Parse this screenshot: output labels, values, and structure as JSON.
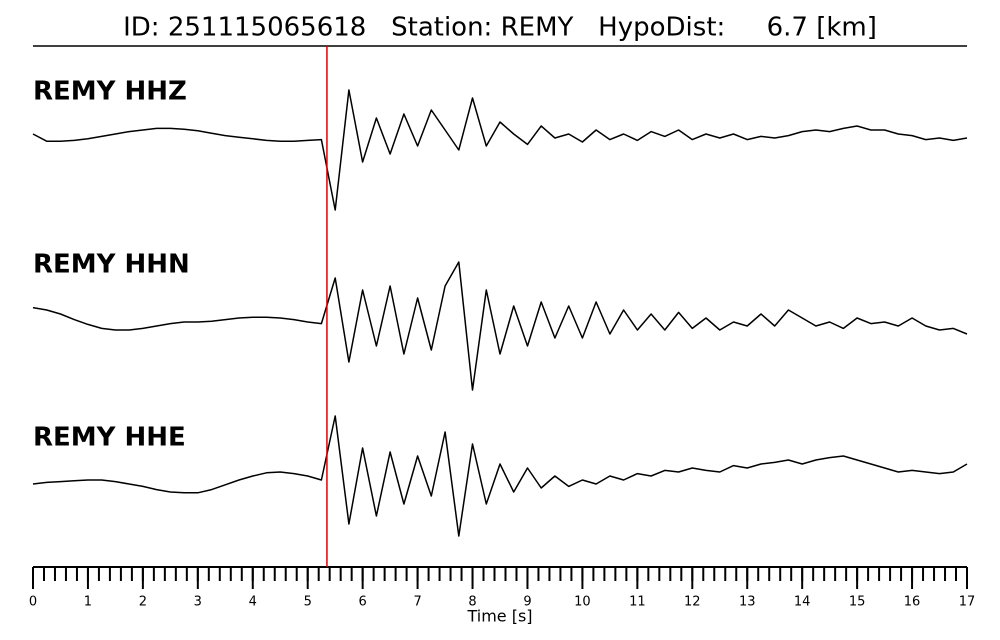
{
  "chart_data": {
    "type": "line",
    "title": "ID: 251115065618   Station: REMY   HypoDist:     6.7 [km]",
    "xlabel": "Time [s]",
    "xlim": [
      0,
      17
    ],
    "xticks": [
      0,
      1,
      2,
      3,
      4,
      5,
      6,
      7,
      8,
      9,
      10,
      11,
      12,
      13,
      14,
      15,
      16,
      17
    ],
    "minor_tick_step": 0.2,
    "vline": {
      "x": 5.35,
      "color": "#e00000"
    },
    "label_color": "#4c9a0e",
    "x": [
      0,
      0.25,
      0.5,
      0.75,
      1,
      1.25,
      1.5,
      1.75,
      2,
      2.25,
      2.5,
      2.75,
      3,
      3.25,
      3.5,
      3.75,
      4,
      4.25,
      4.5,
      4.75,
      5,
      5.25,
      5.5,
      5.75,
      6,
      6.25,
      6.5,
      6.75,
      7,
      7.25,
      7.5,
      7.75,
      8,
      8.25,
      8.5,
      8.75,
      9,
      9.25,
      9.5,
      9.75,
      10,
      10.25,
      10.5,
      10.75,
      11,
      11.25,
      11.5,
      11.75,
      12,
      12.25,
      12.5,
      12.75,
      13,
      13.25,
      13.5,
      13.75,
      14,
      14.25,
      14.5,
      14.75,
      15,
      15.25,
      15.5,
      15.75,
      16,
      16.25,
      16.5,
      16.75,
      17
    ],
    "series": [
      {
        "name": "REMY HHZ",
        "color": "#000000",
        "values": [
          0.05,
          -0.04,
          -0.04,
          -0.03,
          -0.01,
          0.02,
          0.05,
          0.08,
          0.1,
          0.12,
          0.12,
          0.11,
          0.09,
          0.06,
          0.03,
          0.01,
          -0.01,
          -0.03,
          -0.04,
          -0.04,
          -0.03,
          -0.02,
          -0.9,
          0.6,
          -0.3,
          0.25,
          -0.2,
          0.3,
          -0.1,
          0.35,
          0.1,
          -0.15,
          0.5,
          -0.1,
          0.2,
          0.05,
          -0.08,
          0.15,
          0.0,
          0.05,
          -0.05,
          0.1,
          -0.02,
          0.05,
          -0.03,
          0.08,
          0.02,
          0.1,
          -0.02,
          0.05,
          0.0,
          0.05,
          -0.02,
          0.02,
          0.0,
          0.03,
          0.08,
          0.1,
          0.08,
          0.12,
          0.15,
          0.1,
          0.1,
          0.05,
          0.03,
          -0.02,
          0.0,
          -0.03,
          0.0
        ]
      },
      {
        "name": "REMY HHN",
        "color": "#000000",
        "values": [
          0.18,
          0.15,
          0.1,
          0.03,
          -0.03,
          -0.08,
          -0.1,
          -0.1,
          -0.08,
          -0.05,
          -0.02,
          0.0,
          0.0,
          0.01,
          0.03,
          0.05,
          0.06,
          0.06,
          0.05,
          0.03,
          0.0,
          -0.02,
          0.55,
          -0.5,
          0.4,
          -0.3,
          0.45,
          -0.4,
          0.3,
          -0.35,
          0.45,
          0.75,
          -0.85,
          0.4,
          -0.4,
          0.2,
          -0.3,
          0.25,
          -0.2,
          0.2,
          -0.2,
          0.25,
          -0.15,
          0.15,
          -0.1,
          0.1,
          -0.1,
          0.12,
          -0.08,
          0.05,
          -0.1,
          0.0,
          -0.05,
          0.1,
          -0.05,
          0.15,
          0.05,
          -0.05,
          0.0,
          -0.08,
          0.05,
          -0.02,
          0.0,
          -0.05,
          0.05,
          -0.05,
          -0.1,
          -0.08,
          -0.15
        ]
      },
      {
        "name": "REMY HHE",
        "color": "#000000",
        "values": [
          -0.05,
          -0.03,
          -0.02,
          -0.01,
          0.0,
          0.0,
          -0.02,
          -0.05,
          -0.08,
          -0.12,
          -0.15,
          -0.16,
          -0.16,
          -0.12,
          -0.06,
          0.0,
          0.05,
          0.09,
          0.1,
          0.08,
          0.05,
          0.0,
          0.8,
          -0.55,
          0.4,
          -0.45,
          0.35,
          -0.3,
          0.3,
          -0.2,
          0.6,
          -0.7,
          0.45,
          -0.3,
          0.2,
          -0.15,
          0.15,
          -0.1,
          0.05,
          -0.08,
          0.0,
          -0.05,
          0.05,
          0.0,
          0.08,
          0.05,
          0.12,
          0.1,
          0.15,
          0.12,
          0.1,
          0.18,
          0.15,
          0.2,
          0.22,
          0.25,
          0.2,
          0.25,
          0.28,
          0.3,
          0.25,
          0.2,
          0.15,
          0.1,
          0.12,
          0.1,
          0.08,
          0.1,
          0.2
        ]
      }
    ]
  }
}
